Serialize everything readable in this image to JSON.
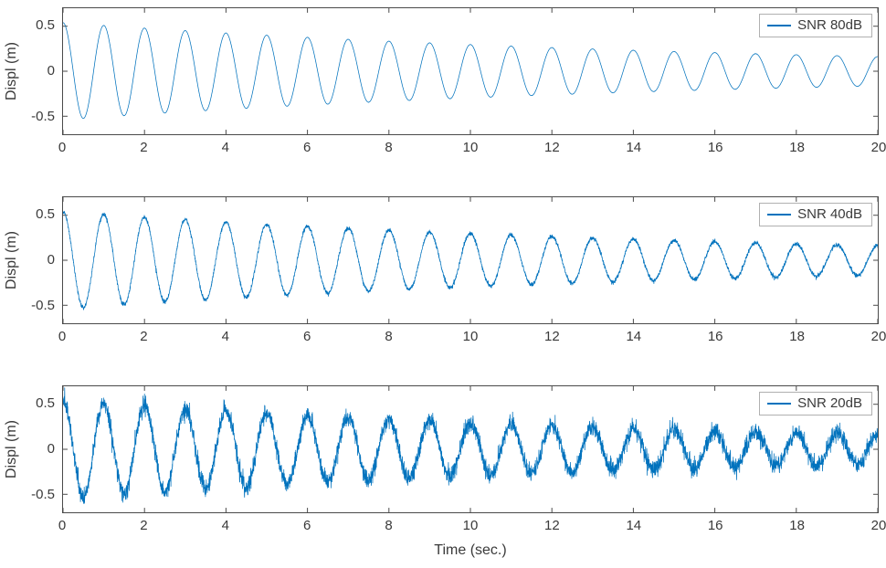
{
  "figure": {
    "background": "#ffffff",
    "xlabel": "Time (sec.)",
    "axis_color": "#4a4a4a",
    "text_color": "#3a3a3a",
    "line_color": "#0072BD",
    "legend_border_color": "#b0b0b0"
  },
  "chart_data": [
    {
      "type": "line",
      "legend": "SNR 80dB",
      "ylabel": "Displ (m)",
      "xlabel": "",
      "xlim": [
        0,
        20
      ],
      "ylim": [
        -0.7,
        0.7
      ],
      "x_ticks": [
        0,
        2,
        4,
        6,
        8,
        10,
        12,
        14,
        16,
        18,
        20
      ],
      "x_tick_labels": [
        "0",
        "2",
        "4",
        "6",
        "8",
        "10",
        "12",
        "14",
        "16",
        "18",
        "20"
      ],
      "y_ticks": [
        -0.5,
        0,
        0.5
      ],
      "y_tick_labels": [
        "-0.5",
        "0",
        "0.5"
      ],
      "grid": false,
      "legend_position": "top-right",
      "signal": {
        "model": "damped_cosine",
        "amplitude": 0.54,
        "frequency_hz": 1,
        "damping_per_sec": 0.06,
        "snr_db": 80,
        "noise_std": 0.0005,
        "t_start": 0,
        "t_end": 20
      }
    },
    {
      "type": "line",
      "legend": "SNR 40dB",
      "ylabel": "Displ (m)",
      "xlabel": "",
      "xlim": [
        0,
        20
      ],
      "ylim": [
        -0.7,
        0.7
      ],
      "x_ticks": [
        0,
        2,
        4,
        6,
        8,
        10,
        12,
        14,
        16,
        18,
        20
      ],
      "x_tick_labels": [
        "0",
        "2",
        "4",
        "6",
        "8",
        "10",
        "12",
        "14",
        "16",
        "18",
        "20"
      ],
      "y_ticks": [
        -0.5,
        0,
        0.5
      ],
      "y_tick_labels": [
        "-0.5",
        "0",
        "0.5"
      ],
      "grid": false,
      "legend_position": "top-right",
      "signal": {
        "model": "damped_cosine",
        "amplitude": 0.54,
        "frequency_hz": 1,
        "damping_per_sec": 0.06,
        "snr_db": 40,
        "noise_std": 0.012,
        "t_start": 0,
        "t_end": 20
      }
    },
    {
      "type": "line",
      "legend": "SNR 20dB",
      "ylabel": "Displ (m)",
      "xlabel": "Time (sec.)",
      "xlim": [
        0,
        20
      ],
      "ylim": [
        -0.7,
        0.7
      ],
      "x_ticks": [
        0,
        2,
        4,
        6,
        8,
        10,
        12,
        14,
        16,
        18,
        20
      ],
      "x_tick_labels": [
        "0",
        "2",
        "4",
        "6",
        "8",
        "10",
        "12",
        "14",
        "16",
        "18",
        "20"
      ],
      "y_ticks": [
        -0.5,
        0,
        0.5
      ],
      "y_tick_labels": [
        "-0.5",
        "0",
        "0.5"
      ],
      "grid": false,
      "legend_position": "top-right",
      "signal": {
        "model": "damped_cosine",
        "amplitude": 0.54,
        "frequency_hz": 1,
        "damping_per_sec": 0.06,
        "snr_db": 20,
        "noise_std": 0.05,
        "t_start": 0,
        "t_end": 20
      }
    }
  ]
}
